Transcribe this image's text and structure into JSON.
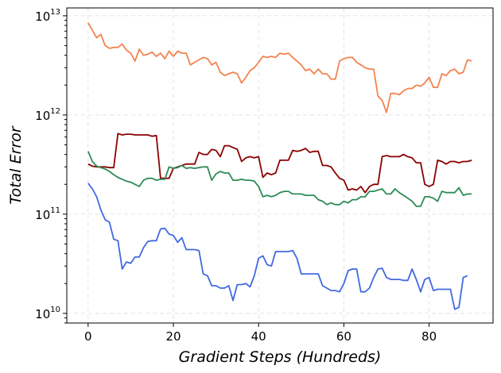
{
  "chart_data": {
    "type": "line",
    "xlabel": "Gradient Steps (Hundreds)",
    "ylabel": "Total Error",
    "yscale": "log",
    "xlim": [
      -5,
      95
    ],
    "ylim": [
      8000000000.0,
      12000000000000.0
    ],
    "xticks": [
      0,
      20,
      40,
      60,
      80
    ],
    "xtick_labels": [
      "0",
      "20",
      "40",
      "60",
      "80"
    ],
    "yticks": [
      10000000000.0,
      100000000000.0,
      1000000000000.0,
      10000000000000.0
    ],
    "ytick_labels": [
      {
        "base": "10",
        "exp": "10"
      },
      {
        "base": "10",
        "exp": "11"
      },
      {
        "base": "10",
        "exp": "12"
      },
      {
        "base": "10",
        "exp": "13"
      }
    ],
    "grid": true,
    "series": [
      {
        "color": "#f4824f",
        "x": [
          0,
          2,
          3,
          4,
          5,
          6,
          7,
          8,
          9,
          10,
          11,
          12,
          13,
          14,
          15,
          16,
          17,
          18,
          19,
          20,
          21,
          22,
          23,
          24,
          25,
          26,
          27,
          28,
          29,
          30,
          31,
          32,
          33,
          34,
          35,
          36,
          37,
          38,
          39,
          40,
          41,
          42,
          43,
          44,
          45,
          46,
          47,
          48,
          49,
          50,
          51,
          52,
          53,
          54,
          55,
          56,
          57,
          58,
          59,
          60,
          61,
          62,
          63,
          64,
          65,
          66,
          67,
          68,
          69,
          70,
          71,
          72,
          73,
          74,
          75,
          76,
          77,
          78,
          79,
          80,
          81,
          82,
          83,
          84,
          85,
          86,
          87,
          88,
          89,
          90
        ],
        "y": [
          8500000000000.0,
          6000000000000.0,
          6500000000000.0,
          5000000000000.0,
          4700000000000.0,
          4800000000000.0,
          4800000000000.0,
          5200000000000.0,
          4500000000000.0,
          4200000000000.0,
          3500000000000.0,
          4600000000000.0,
          4000000000000.0,
          4100000000000.0,
          4300000000000.0,
          3900000000000.0,
          4200000000000.0,
          3700000000000.0,
          4400000000000.0,
          3900000000000.0,
          4400000000000.0,
          4200000000000.0,
          4200000000000.0,
          3200000000000.0,
          3400000000000.0,
          3600000000000.0,
          3800000000000.0,
          3700000000000.0,
          3200000000000.0,
          3400000000000.0,
          2700000000000.0,
          2500000000000.0,
          2600000000000.0,
          2700000000000.0,
          2600000000000.0,
          2100000000000.0,
          2400000000000.0,
          2800000000000.0,
          3000000000000.0,
          3400000000000.0,
          3900000000000.0,
          3800000000000.0,
          3900000000000.0,
          3800000000000.0,
          4200000000000.0,
          4100000000000.0,
          4200000000000.0,
          3800000000000.0,
          3500000000000.0,
          3200000000000.0,
          2800000000000.0,
          2900000000000.0,
          2600000000000.0,
          2900000000000.0,
          2600000000000.0,
          2600000000000.0,
          2300000000000.0,
          2300000000000.0,
          3500000000000.0,
          3700000000000.0,
          3800000000000.0,
          3800000000000.0,
          3400000000000.0,
          3200000000000.0,
          3000000000000.0,
          2900000000000.0,
          2900000000000.0,
          1550000000000.0,
          1400000000000.0,
          1060000000000.0,
          1650000000000.0,
          1650000000000.0,
          1600000000000.0,
          1750000000000.0,
          1850000000000.0,
          1850000000000.0,
          2000000000000.0,
          1950000000000.0,
          2100000000000.0,
          2400000000000.0,
          1900000000000.0,
          1900000000000.0,
          2600000000000.0,
          2500000000000.0,
          2800000000000.0,
          2900000000000.0,
          2600000000000.0,
          2700000000000.0,
          3600000000000.0,
          3500000000000.0
        ]
      },
      {
        "color": "#8b0000",
        "x": [
          0,
          1,
          2,
          3,
          4,
          5,
          6,
          7,
          8,
          9,
          10,
          11,
          12,
          13,
          14,
          15,
          16,
          17,
          18,
          19,
          20,
          21,
          22,
          23,
          24,
          25,
          26,
          27,
          28,
          29,
          30,
          31,
          32,
          33,
          34,
          35,
          36,
          37,
          38,
          39,
          40,
          41,
          42,
          43,
          44,
          45,
          46,
          47,
          48,
          49,
          50,
          51,
          52,
          53,
          54,
          55,
          56,
          57,
          58,
          59,
          60,
          61,
          62,
          63,
          64,
          65,
          66,
          67,
          68,
          69,
          70,
          71,
          72,
          73,
          74,
          75,
          76,
          77,
          78,
          79,
          80,
          81,
          82,
          83,
          84,
          85,
          86,
          87,
          88,
          89,
          90
        ],
        "y": [
          320000000000.0,
          305000000000.0,
          300000000000.0,
          300000000000.0,
          300000000000.0,
          295000000000.0,
          295000000000.0,
          650000000000.0,
          630000000000.0,
          640000000000.0,
          640000000000.0,
          630000000000.0,
          630000000000.0,
          630000000000.0,
          630000000000.0,
          610000000000.0,
          620000000000.0,
          230000000000.0,
          230000000000.0,
          230000000000.0,
          290000000000.0,
          300000000000.0,
          310000000000.0,
          320000000000.0,
          320000000000.0,
          320000000000.0,
          420000000000.0,
          400000000000.0,
          400000000000.0,
          450000000000.0,
          440000000000.0,
          380000000000.0,
          490000000000.0,
          490000000000.0,
          470000000000.0,
          450000000000.0,
          340000000000.0,
          370000000000.0,
          380000000000.0,
          370000000000.0,
          380000000000.0,
          235000000000.0,
          260000000000.0,
          250000000000.0,
          260000000000.0,
          350000000000.0,
          350000000000.0,
          350000000000.0,
          440000000000.0,
          430000000000.0,
          440000000000.0,
          460000000000.0,
          420000000000.0,
          430000000000.0,
          430000000000.0,
          310000000000.0,
          310000000000.0,
          300000000000.0,
          260000000000.0,
          230000000000.0,
          220000000000.0,
          175000000000.0,
          180000000000.0,
          175000000000.0,
          190000000000.0,
          165000000000.0,
          190000000000.0,
          200000000000.0,
          200000000000.0,
          380000000000.0,
          390000000000.0,
          380000000000.0,
          380000000000.0,
          380000000000.0,
          400000000000.0,
          380000000000.0,
          370000000000.0,
          330000000000.0,
          330000000000.0,
          200000000000.0,
          190000000000.0,
          200000000000.0,
          350000000000.0,
          340000000000.0,
          320000000000.0,
          340000000000.0,
          340000000000.0,
          330000000000.0,
          340000000000.0,
          340000000000.0,
          350000000000.0
        ]
      },
      {
        "color": "#2e8b57",
        "x": [
          0,
          1,
          2,
          3,
          4,
          5,
          6,
          7,
          8,
          9,
          10,
          11,
          12,
          13,
          14,
          15,
          16,
          17,
          18,
          19,
          20,
          21,
          22,
          23,
          24,
          25,
          26,
          27,
          28,
          29,
          30,
          31,
          32,
          33,
          34,
          35,
          36,
          37,
          38,
          39,
          40,
          41,
          42,
          43,
          44,
          45,
          46,
          47,
          48,
          49,
          50,
          51,
          52,
          53,
          54,
          55,
          56,
          57,
          58,
          59,
          60,
          61,
          62,
          63,
          64,
          65,
          66,
          67,
          68,
          69,
          70,
          71,
          72,
          73,
          74,
          75,
          76,
          77,
          78,
          79,
          80,
          81,
          82,
          83,
          84,
          85,
          86,
          87,
          88,
          89,
          90
        ],
        "y": [
          430000000000.0,
          340000000000.0,
          305000000000.0,
          295000000000.0,
          285000000000.0,
          270000000000.0,
          250000000000.0,
          235000000000.0,
          225000000000.0,
          215000000000.0,
          210000000000.0,
          200000000000.0,
          190000000000.0,
          220000000000.0,
          230000000000.0,
          230000000000.0,
          220000000000.0,
          225000000000.0,
          225000000000.0,
          300000000000.0,
          290000000000.0,
          295000000000.0,
          310000000000.0,
          290000000000.0,
          295000000000.0,
          290000000000.0,
          295000000000.0,
          300000000000.0,
          300000000000.0,
          220000000000.0,
          255000000000.0,
          270000000000.0,
          260000000000.0,
          260000000000.0,
          220000000000.0,
          220000000000.0,
          225000000000.0,
          220000000000.0,
          220000000000.0,
          215000000000.0,
          190000000000.0,
          150000000000.0,
          155000000000.0,
          150000000000.0,
          155000000000.0,
          165000000000.0,
          170000000000.0,
          170000000000.0,
          160000000000.0,
          160000000000.0,
          160000000000.0,
          155000000000.0,
          155000000000.0,
          155000000000.0,
          140000000000.0,
          135000000000.0,
          125000000000.0,
          130000000000.0,
          125000000000.0,
          125000000000.0,
          135000000000.0,
          130000000000.0,
          140000000000.0,
          140000000000.0,
          150000000000.0,
          150000000000.0,
          170000000000.0,
          170000000000.0,
          175000000000.0,
          180000000000.0,
          160000000000.0,
          160000000000.0,
          180000000000.0,
          165000000000.0,
          155000000000.0,
          145000000000.0,
          135000000000.0,
          120000000000.0,
          120000000000.0,
          150000000000.0,
          150000000000.0,
          145000000000.0,
          135000000000.0,
          170000000000.0,
          165000000000.0,
          165000000000.0,
          165000000000.0,
          185000000000.0,
          155000000000.0,
          160000000000.0,
          160000000000.0
        ]
      },
      {
        "color": "#4169e1",
        "x": [
          0,
          1,
          2,
          3,
          4,
          5,
          6,
          7,
          8,
          9,
          10,
          11,
          12,
          13,
          14,
          15,
          16,
          17,
          18,
          19,
          20,
          21,
          22,
          23,
          24,
          25,
          26,
          27,
          28,
          29,
          30,
          31,
          32,
          33,
          34,
          35,
          36,
          37,
          38,
          39,
          40,
          41,
          42,
          43,
          44,
          45,
          46,
          47,
          48,
          49,
          50,
          51,
          52,
          53,
          54,
          55,
          56,
          57,
          58,
          59,
          60,
          61,
          62,
          63,
          64,
          65,
          66,
          67,
          68,
          69,
          70,
          71,
          72,
          73,
          74,
          75,
          76,
          77,
          78,
          79,
          80,
          81,
          82,
          83,
          84,
          85,
          86,
          87,
          88,
          89
        ],
        "y": [
          205000000000.0,
          180000000000.0,
          150000000000.0,
          110000000000.0,
          88000000000.0,
          83000000000.0,
          56000000000.0,
          54000000000.0,
          28000000000.0,
          33000000000.0,
          32000000000.0,
          37000000000.0,
          37000000000.0,
          46000000000.0,
          53000000000.0,
          54000000000.0,
          54000000000.0,
          71000000000.0,
          72000000000.0,
          63000000000.0,
          61000000000.0,
          52000000000.0,
          58000000000.0,
          44000000000.0,
          44000000000.0,
          44000000000.0,
          43000000000.0,
          25000000000.0,
          24000000000.0,
          19000000000.0,
          19000000000.0,
          18000000000.0,
          18000000000.0,
          19000000000.0,
          13500000000.0,
          19500000000.0,
          19500000000.0,
          20000000000.0,
          18500000000.0,
          24000000000.0,
          36000000000.0,
          38000000000.0,
          31000000000.0,
          30000000000.0,
          42000000000.0,
          42000000000.0,
          42000000000.0,
          42000000000.0,
          43000000000.0,
          36000000000.0,
          25000000000.0,
          25000000000.0,
          25000000000.0,
          25000000000.0,
          25000000000.0,
          19000000000.0,
          18000000000.0,
          17000000000.0,
          17000000000.0,
          16500000000.0,
          20000000000.0,
          27000000000.0,
          28000000000.0,
          28000000000.0,
          16500000000.0,
          16500000000.0,
          18000000000.0,
          23000000000.0,
          28000000000.0,
          28500000000.0,
          23000000000.0,
          22000000000.0,
          22000000000.0,
          22000000000.0,
          21500000000.0,
          21500000000.0,
          28000000000.0,
          22000000000.0,
          16500000000.0,
          22000000000.0,
          23000000000.0,
          17000000000.0,
          17500000000.0,
          17500000000.0,
          17500000000.0,
          17500000000.0,
          11000000000.0,
          11500000000.0,
          23000000000.0,
          24000000000.0
        ]
      }
    ]
  }
}
